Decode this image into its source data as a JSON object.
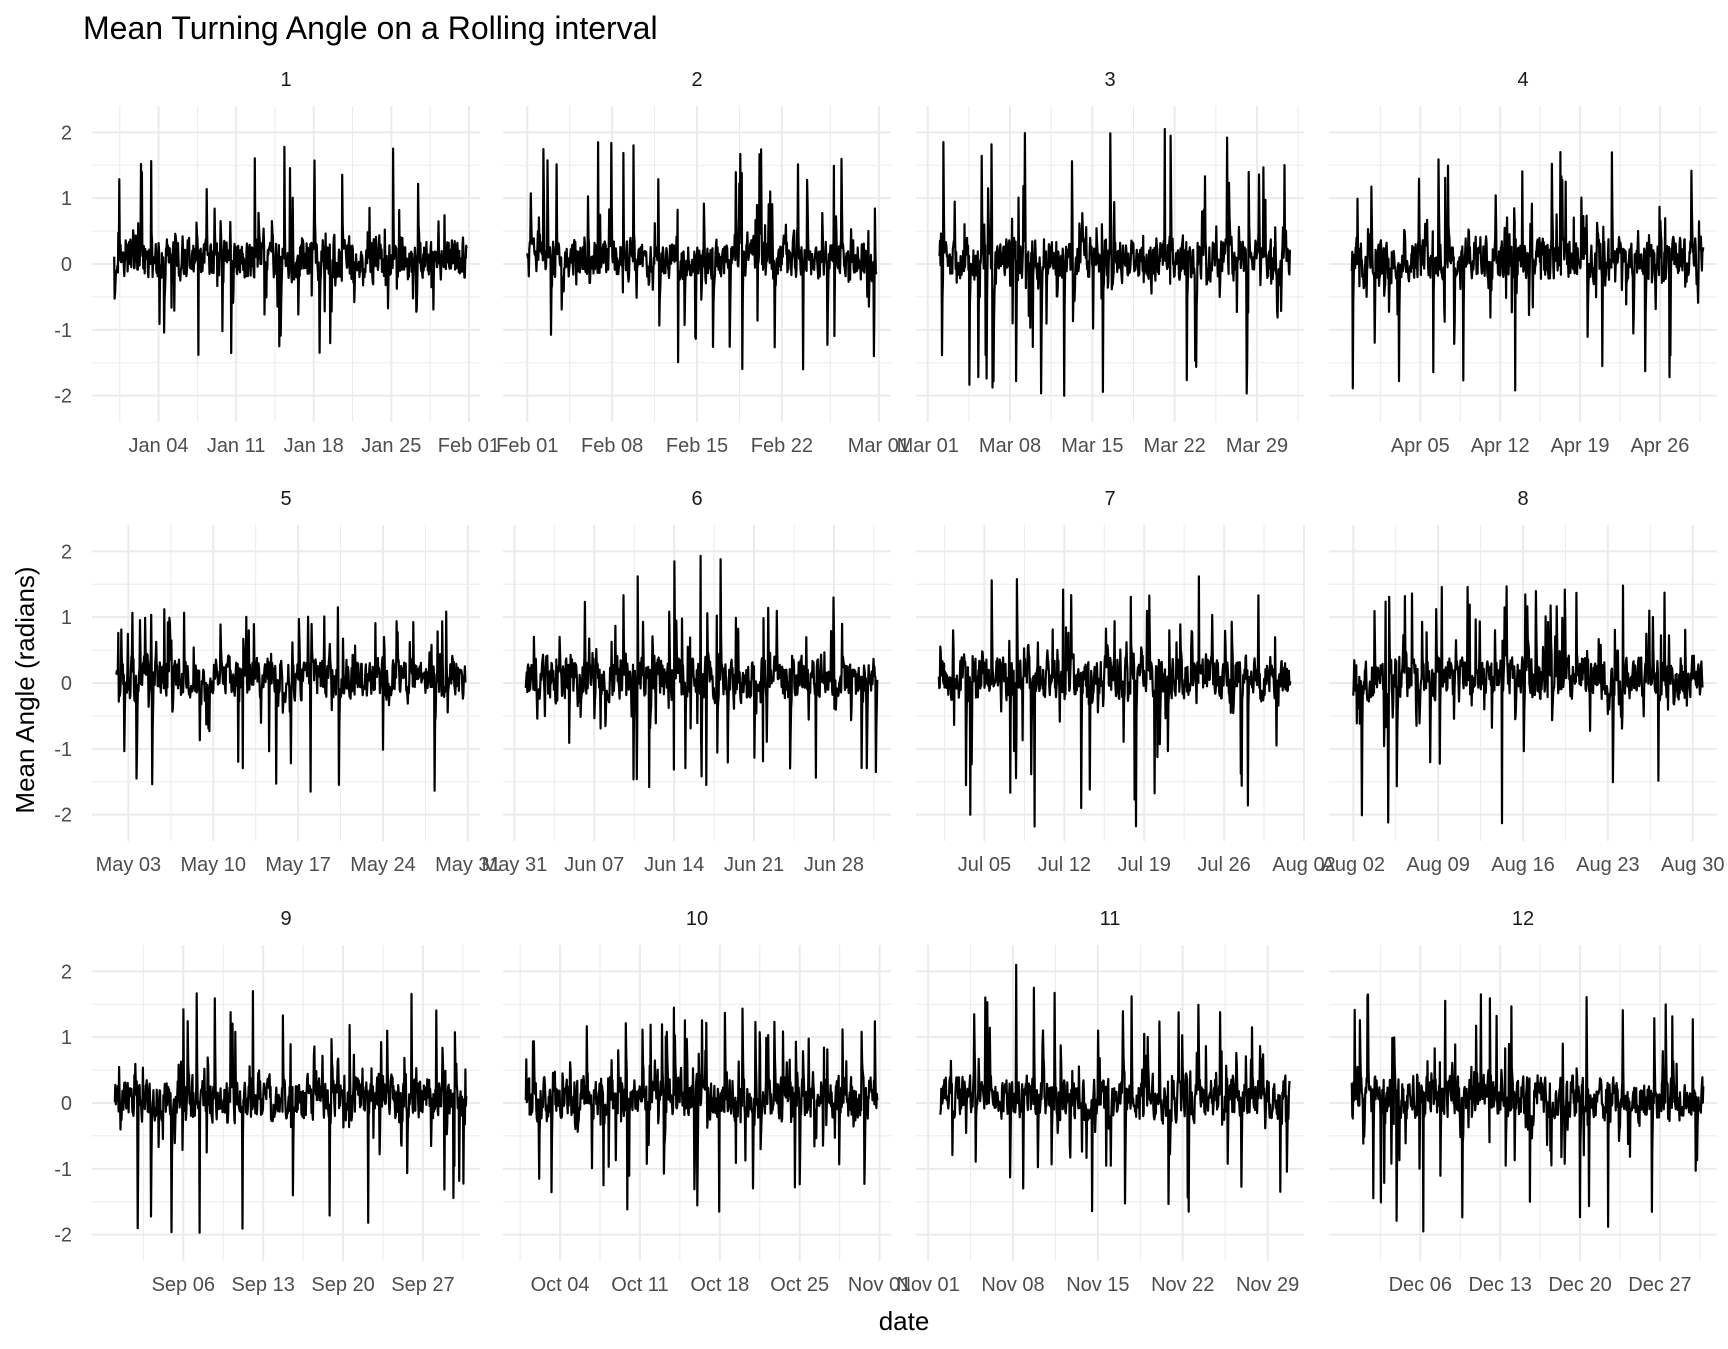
{
  "chart_data": {
    "type": "line",
    "title": "Mean Turning Angle on a Rolling interval",
    "xlabel": "date",
    "ylabel": "Mean Angle (radians)",
    "ylim": [
      -2.4,
      2.4
    ],
    "y_ticks": [
      -2,
      -1,
      0,
      1,
      2
    ],
    "y_tick_labels": [
      "-2",
      "-1",
      "0",
      "1",
      "2"
    ],
    "grid": true,
    "legend": "none",
    "series_color": "#000000",
    "facets": [
      {
        "label": "1",
        "xlim": [
          "2023-12-29",
          "2024-02-02"
        ],
        "x_ticks": [
          "2024-01-04",
          "2024-01-11",
          "2024-01-18",
          "2024-01-25",
          "2024-02-01"
        ],
        "x_tick_labels": [
          "Jan 04",
          "Jan 11",
          "Jan 18",
          "Jan 25",
          "Feb 01"
        ],
        "y_summary": {
          "min": -1.38,
          "max": 1.78,
          "typical_range": [
            -0.6,
            0.7
          ]
        }
      },
      {
        "label": "2",
        "xlim": [
          "2024-01-30",
          "2024-03-02"
        ],
        "x_ticks": [
          "2024-02-01",
          "2024-02-08",
          "2024-02-15",
          "2024-02-22",
          "2024-03-01"
        ],
        "x_tick_labels": [
          "Feb 01",
          "Feb 08",
          "Feb 15",
          "Feb 22",
          "Mar 01"
        ],
        "y_summary": {
          "min": -1.6,
          "max": 1.85,
          "typical_range": [
            -0.6,
            0.7
          ]
        }
      },
      {
        "label": "3",
        "xlim": [
          "2024-02-29",
          "2024-04-02"
        ],
        "x_ticks": [
          "2024-03-01",
          "2024-03-08",
          "2024-03-15",
          "2024-03-22",
          "2024-03-29"
        ],
        "x_tick_labels": [
          "Mar 01",
          "Mar 08",
          "Mar 15",
          "Mar 22",
          "Mar 29"
        ],
        "y_summary": {
          "min": -2.0,
          "max": 2.05,
          "typical_range": [
            -0.7,
            0.8
          ]
        }
      },
      {
        "label": "4",
        "xlim": [
          "2024-03-28",
          "2024-05-01"
        ],
        "x_ticks": [
          "2024-04-05",
          "2024-04-12",
          "2024-04-19",
          "2024-04-26"
        ],
        "x_tick_labels": [
          "Apr 05",
          "Apr 12",
          "Apr 19",
          "Apr 26"
        ],
        "y_summary": {
          "min": -1.92,
          "max": 1.7,
          "typical_range": [
            -0.6,
            0.7
          ]
        }
      },
      {
        "label": "5",
        "xlim": [
          "2024-04-30",
          "2024-06-01"
        ],
        "x_ticks": [
          "2024-05-03",
          "2024-05-10",
          "2024-05-17",
          "2024-05-24",
          "2024-05-31"
        ],
        "x_tick_labels": [
          "May 03",
          "May 10",
          "May 17",
          "May 24",
          "May 31"
        ],
        "y_summary": {
          "min": -1.65,
          "max": 1.15,
          "typical_range": [
            -0.6,
            0.6
          ]
        }
      },
      {
        "label": "6",
        "xlim": [
          "2024-05-30",
          "2024-07-03"
        ],
        "x_ticks": [
          "2024-05-31",
          "2024-06-07",
          "2024-06-14",
          "2024-06-21",
          "2024-06-28"
        ],
        "x_tick_labels": [
          "May 31",
          "Jun 07",
          "Jun 14",
          "Jun 21",
          "Jun 28"
        ],
        "y_summary": {
          "min": -1.58,
          "max": 1.93,
          "typical_range": [
            -0.6,
            0.7
          ]
        }
      },
      {
        "label": "7",
        "xlim": [
          "2024-06-29",
          "2024-08-02"
        ],
        "x_ticks": [
          "2024-07-05",
          "2024-07-12",
          "2024-07-19",
          "2024-07-26",
          "2024-08-02"
        ],
        "x_tick_labels": [
          "Jul 05",
          "Jul 12",
          "Jul 19",
          "Jul 26",
          "Aug 02"
        ],
        "y_summary": {
          "min": -2.18,
          "max": 1.62,
          "typical_range": [
            -0.6,
            0.7
          ]
        }
      },
      {
        "label": "8",
        "xlim": [
          "2024-07-31",
          "2024-09-01"
        ],
        "x_ticks": [
          "2024-08-02",
          "2024-08-09",
          "2024-08-16",
          "2024-08-23",
          "2024-08-30"
        ],
        "x_tick_labels": [
          "Aug 02",
          "Aug 09",
          "Aug 16",
          "Aug 23",
          "Aug 30"
        ],
        "y_summary": {
          "min": -2.13,
          "max": 1.48,
          "typical_range": [
            -0.6,
            0.7
          ]
        }
      },
      {
        "label": "9",
        "xlim": [
          "2024-08-29",
          "2024-10-02"
        ],
        "x_ticks": [
          "2024-09-06",
          "2024-09-13",
          "2024-09-20",
          "2024-09-27"
        ],
        "x_tick_labels": [
          "Sep 06",
          "Sep 13",
          "Sep 20",
          "Sep 27"
        ],
        "y_summary": {
          "min": -1.97,
          "max": 1.7,
          "typical_range": [
            -0.6,
            0.8
          ]
        }
      },
      {
        "label": "10",
        "xlim": [
          "2024-09-29",
          "2024-11-02"
        ],
        "x_ticks": [
          "2024-10-04",
          "2024-10-11",
          "2024-10-18",
          "2024-10-25",
          "2024-11-01"
        ],
        "x_tick_labels": [
          "Oct 04",
          "Oct 11",
          "Oct 18",
          "Oct 25",
          "Nov 01"
        ],
        "y_summary": {
          "min": -1.65,
          "max": 1.45,
          "typical_range": [
            -0.6,
            0.8
          ]
        }
      },
      {
        "label": "11",
        "xlim": [
          "2024-10-31",
          "2024-12-02"
        ],
        "x_ticks": [
          "2024-11-01",
          "2024-11-08",
          "2024-11-15",
          "2024-11-22",
          "2024-11-29"
        ],
        "x_tick_labels": [
          "Nov 01",
          "Nov 08",
          "Nov 15",
          "Nov 22",
          "Nov 29"
        ],
        "y_summary": {
          "min": -1.65,
          "max": 2.1,
          "typical_range": [
            -0.6,
            0.7
          ]
        }
      },
      {
        "label": "12",
        "xlim": [
          "2024-11-28",
          "2025-01-01"
        ],
        "x_ticks": [
          "2024-12-06",
          "2024-12-13",
          "2024-12-20",
          "2024-12-27"
        ],
        "x_tick_labels": [
          "Dec 06",
          "Dec 13",
          "Dec 20",
          "Dec 27"
        ],
        "y_summary": {
          "min": -1.95,
          "max": 1.65,
          "typical_range": [
            -0.6,
            0.7
          ]
        }
      }
    ]
  }
}
